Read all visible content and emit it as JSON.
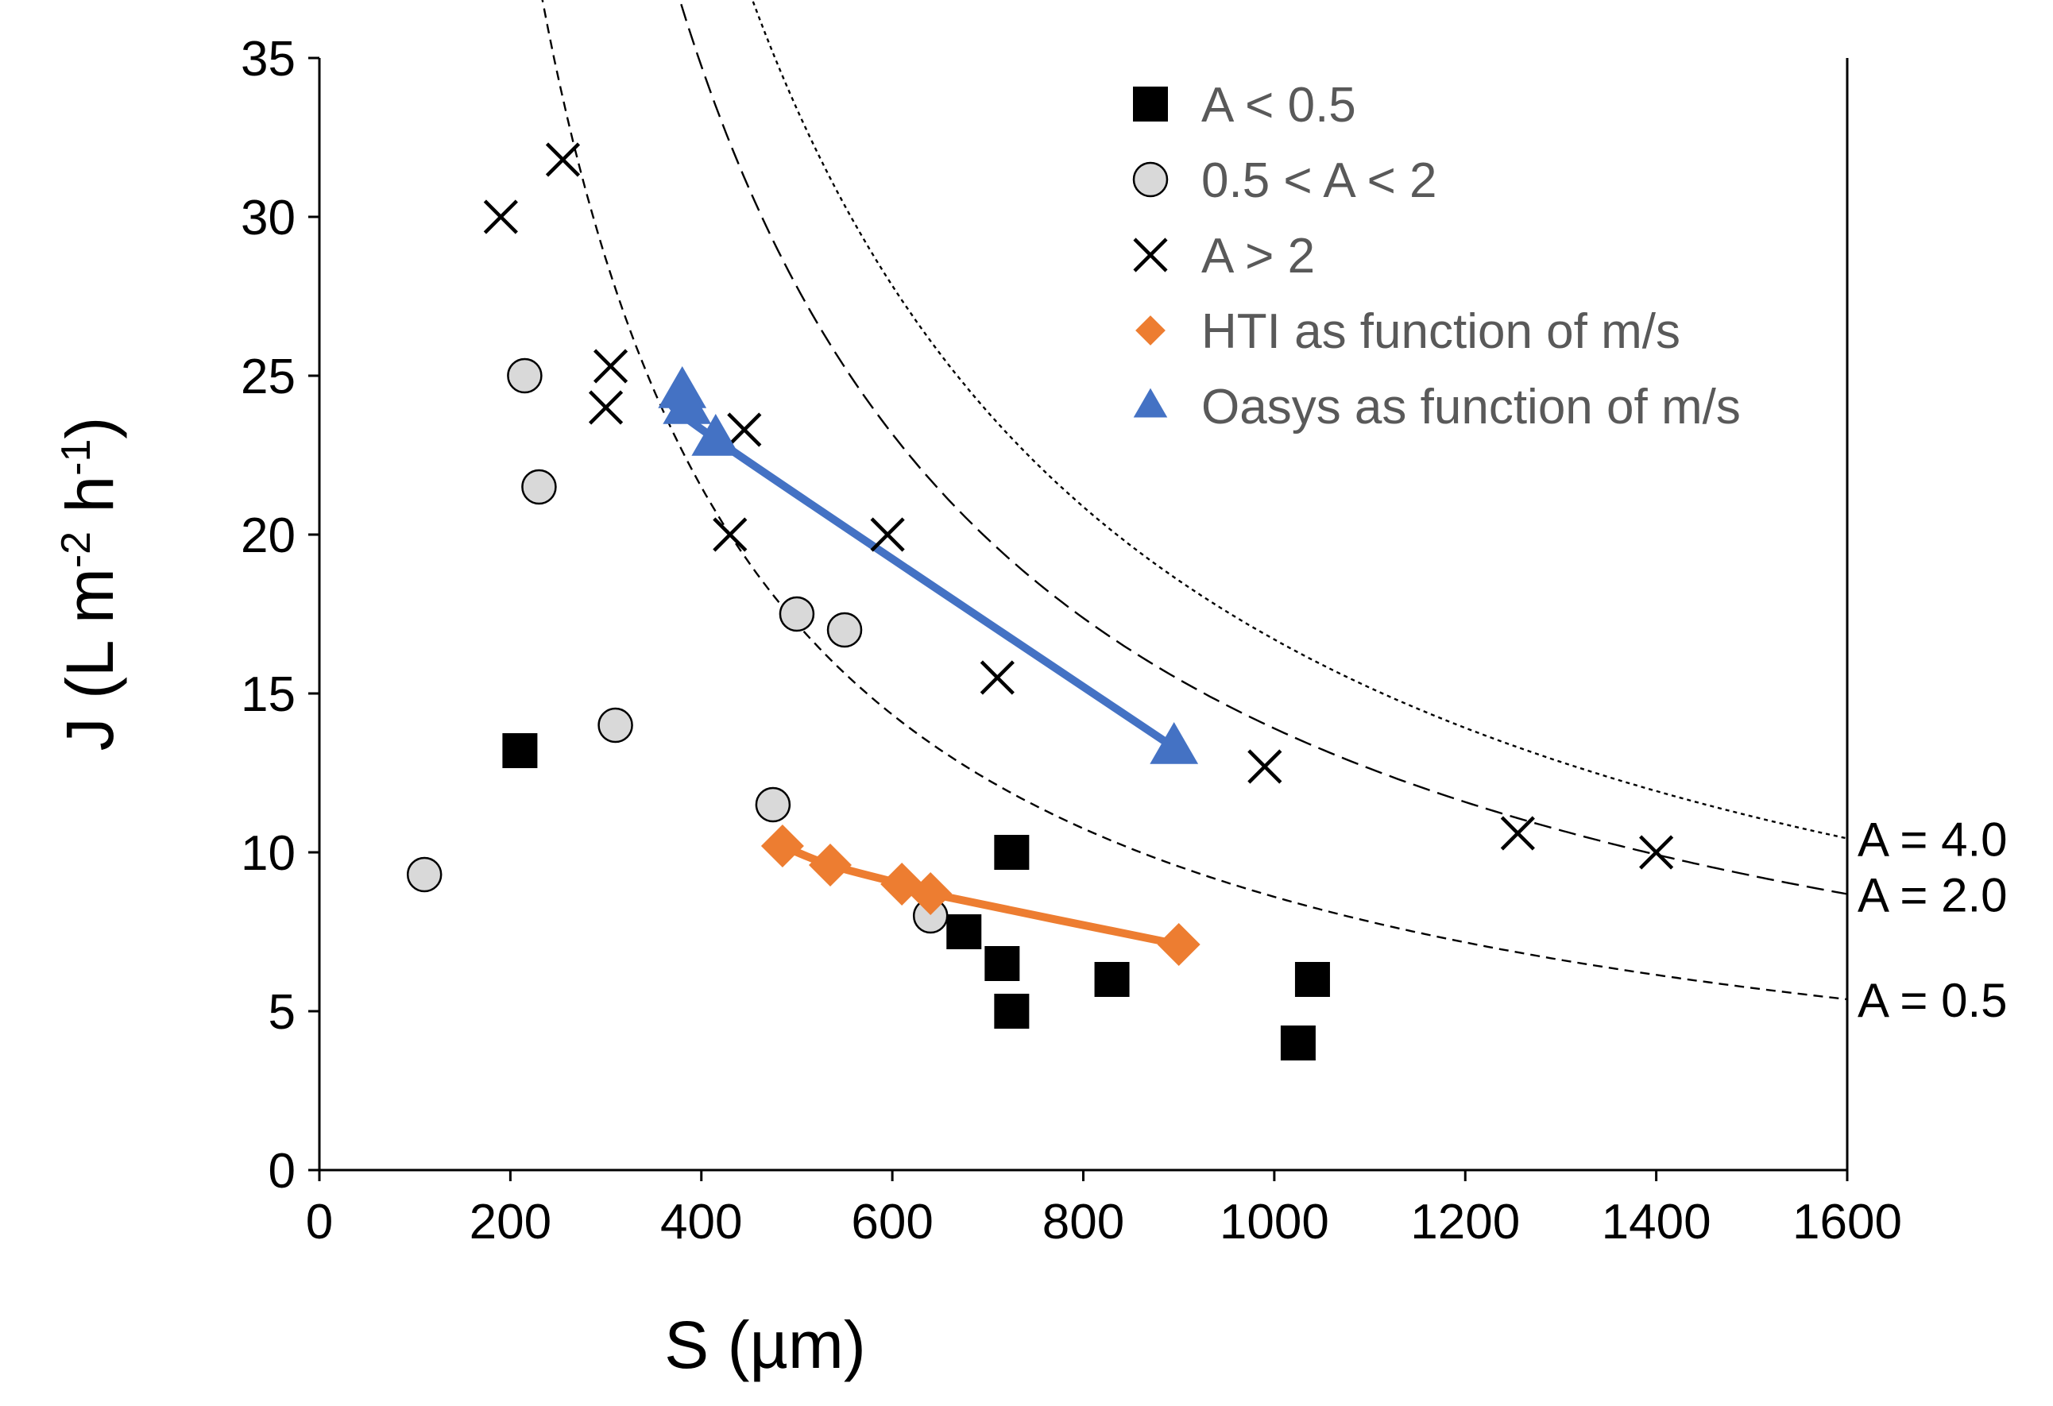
{
  "chart_data": {
    "type": "scatter",
    "title": "",
    "xlabel": "S (µm)",
    "ylabel": "J (L m-2 h-1)",
    "ylabel_parts": {
      "lead": "J (L m",
      "sup1": "-2",
      "mid": " h",
      "sup2": "-1",
      "tail": ")"
    },
    "xlim": [
      0,
      1600
    ],
    "ylim": [
      0,
      35
    ],
    "xticks": [
      0,
      200,
      400,
      600,
      800,
      1000,
      1200,
      1400,
      1600
    ],
    "yticks": [
      0,
      5,
      10,
      15,
      20,
      25,
      30,
      35
    ],
    "grid": false,
    "legend_position": "top-right",
    "series": [
      {
        "name": "A < 0.5",
        "marker": "square",
        "color": "#000000",
        "points": [
          [
            210,
            13.2
          ],
          [
            725,
            10
          ],
          [
            675,
            7.5
          ],
          [
            715,
            6.5
          ],
          [
            725,
            5
          ],
          [
            830,
            6
          ],
          [
            1025,
            4
          ],
          [
            1040,
            6
          ]
        ]
      },
      {
        "name": "0.5 < A < 2",
        "marker": "circle",
        "color": "#d9d9d9",
        "points": [
          [
            110,
            9.3
          ],
          [
            215,
            25
          ],
          [
            230,
            21.5
          ],
          [
            310,
            14
          ],
          [
            475,
            11.5
          ],
          [
            500,
            17.5
          ],
          [
            550,
            17
          ],
          [
            640,
            8
          ]
        ]
      },
      {
        "name": "A > 2",
        "marker": "x",
        "color": "#000000",
        "points": [
          [
            190,
            30
          ],
          [
            255,
            31.8
          ],
          [
            300,
            24
          ],
          [
            305,
            25.3
          ],
          [
            430,
            20
          ],
          [
            445,
            23.3
          ],
          [
            595,
            20
          ],
          [
            710,
            15.5
          ],
          [
            990,
            12.7
          ],
          [
            1255,
            10.6
          ],
          [
            1400,
            10
          ]
        ]
      },
      {
        "name": "HTI as function of m/s",
        "marker": "diamond",
        "color": "#ed7d31",
        "line": true,
        "points": [
          [
            485,
            10.2
          ],
          [
            535,
            9.6
          ],
          [
            610,
            9
          ],
          [
            640,
            8.7
          ],
          [
            900,
            7.1
          ]
        ]
      },
      {
        "name": "Oasys as function of m/s",
        "marker": "triangle",
        "color": "#4472c4",
        "line": true,
        "points": [
          [
            380,
            24.5
          ],
          [
            385,
            24
          ],
          [
            415,
            23
          ],
          [
            895,
            13.3
          ]
        ]
      }
    ],
    "reference_curves": [
      {
        "label": "A = 4.0",
        "style": "dotted",
        "k": 16700,
        "x_start": 280,
        "x_end": 1600
      },
      {
        "label": "A = 2.0",
        "style": "dashed",
        "k": 13900,
        "x_start": 170,
        "x_end": 1600
      },
      {
        "label": "A = 0.5",
        "style": "short-dash",
        "k": 8600,
        "x_start": 15,
        "x_end": 1600
      }
    ]
  }
}
